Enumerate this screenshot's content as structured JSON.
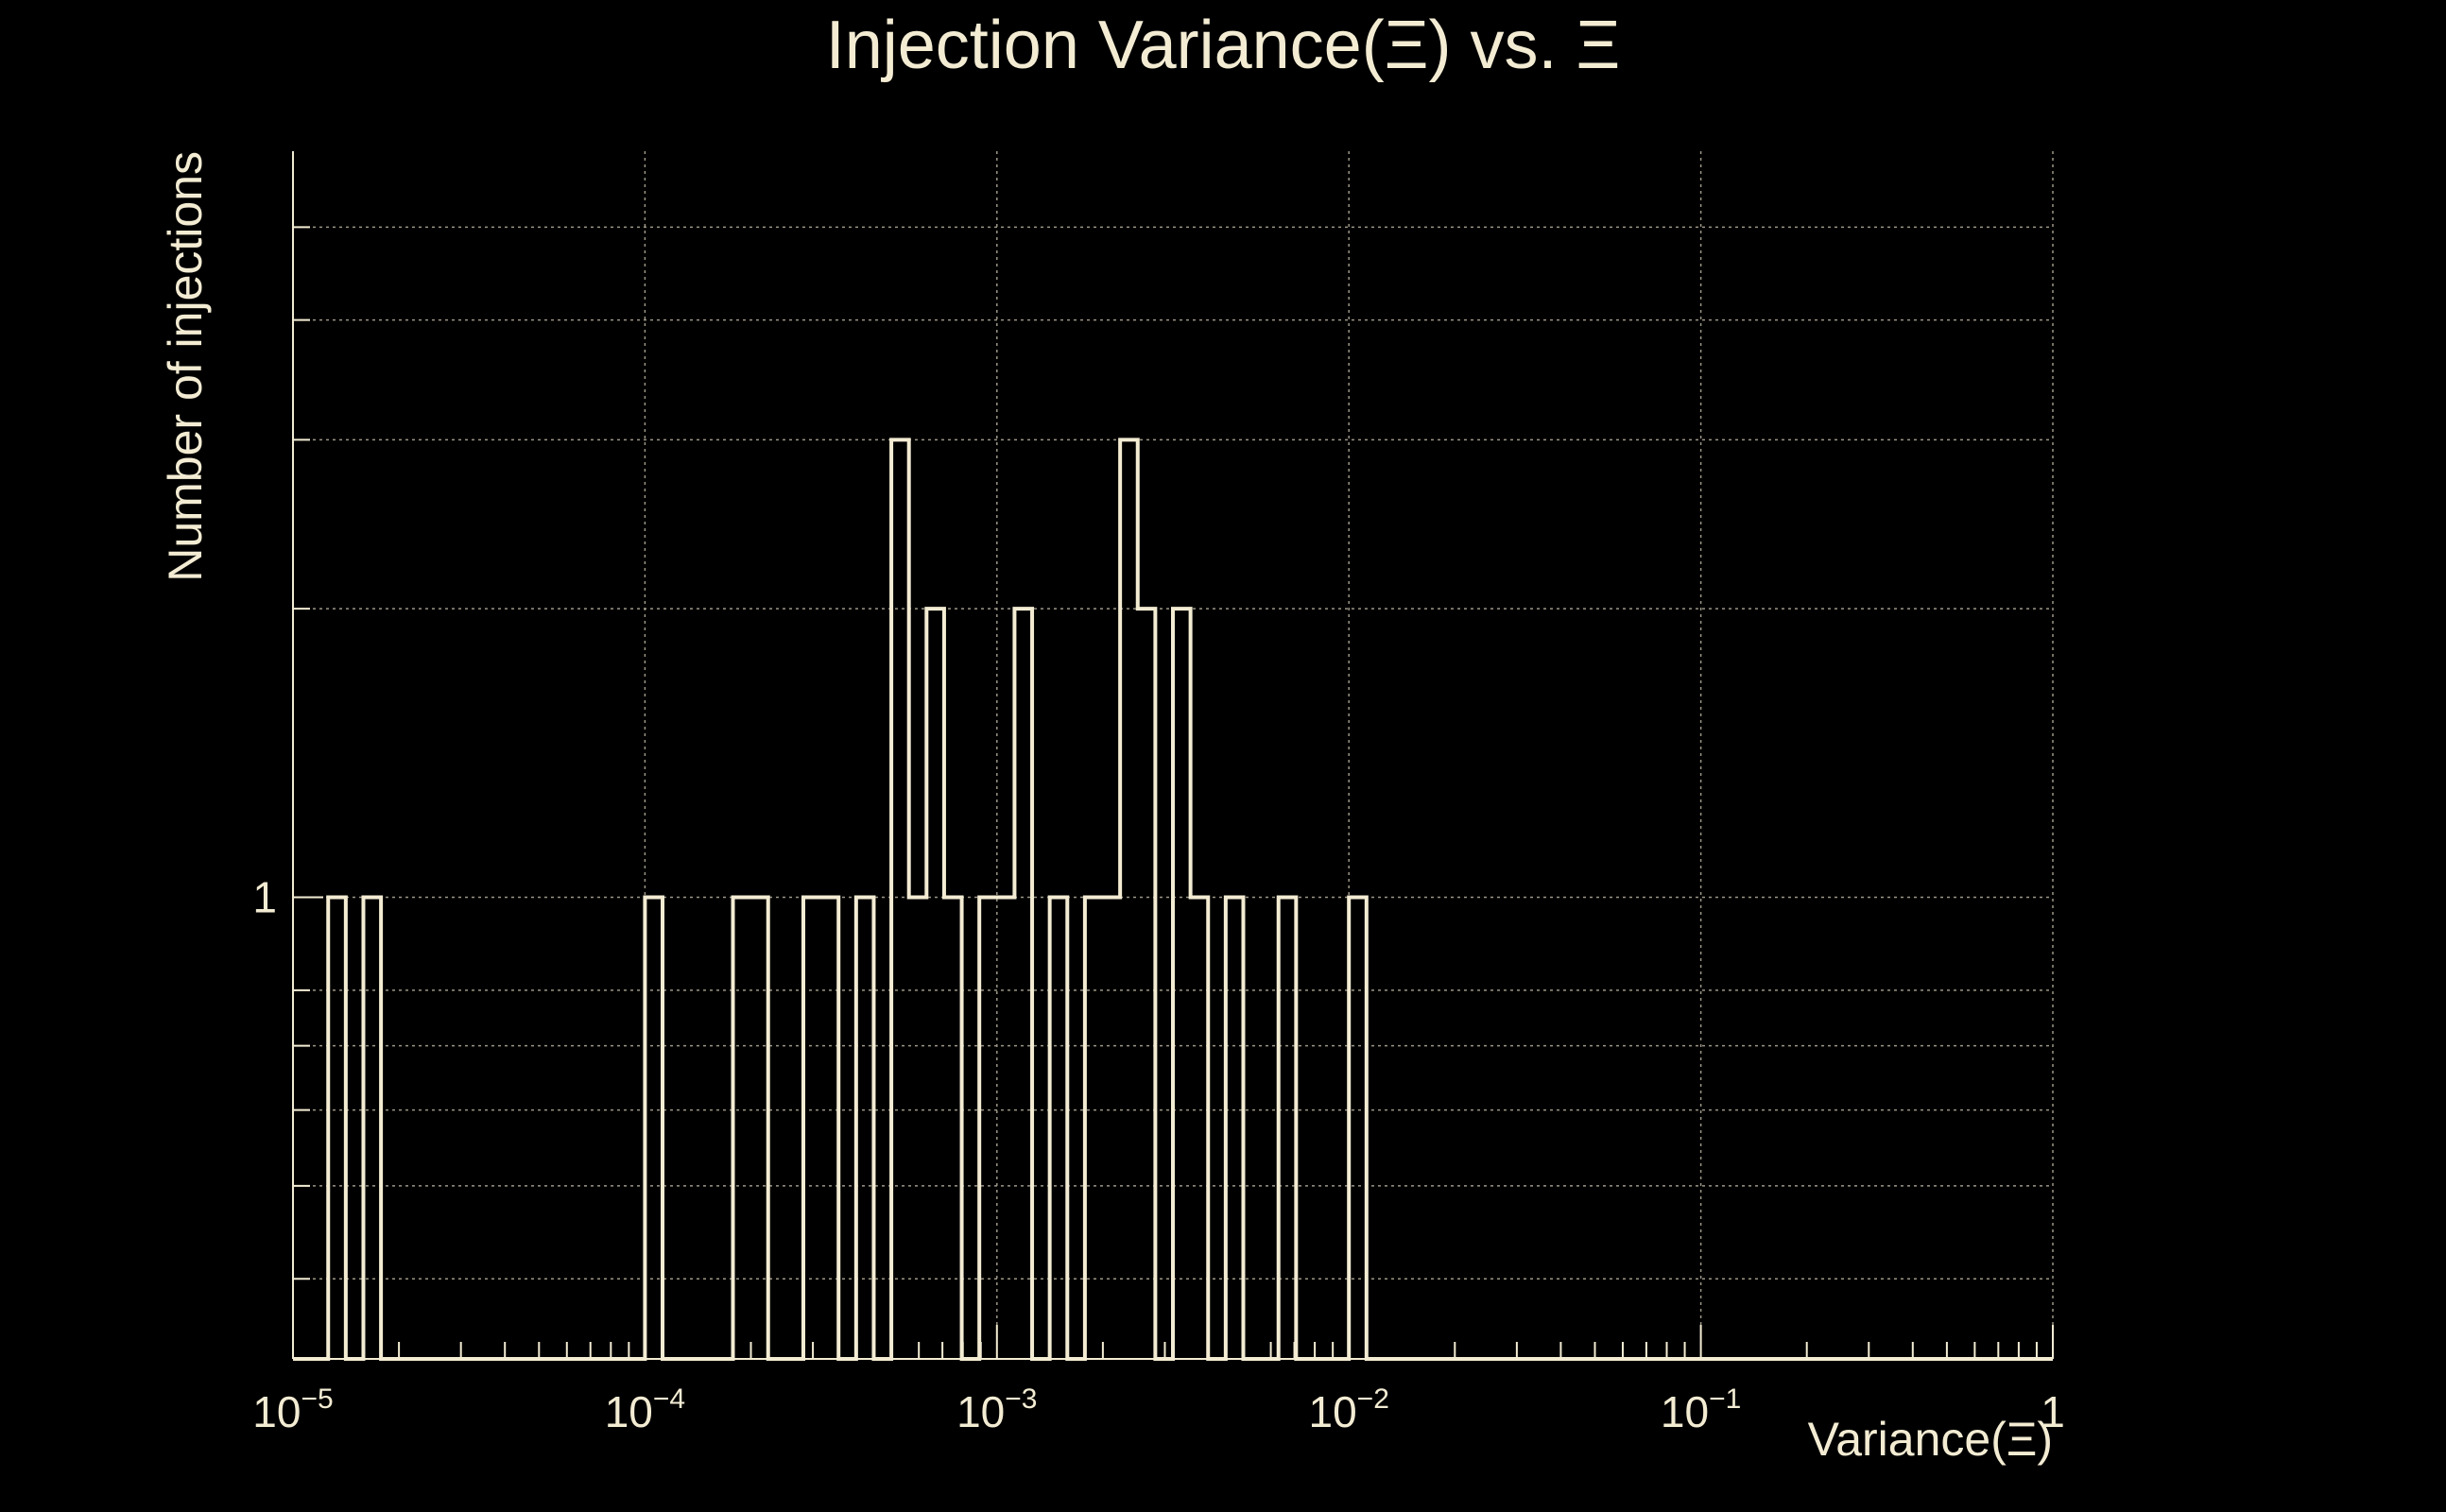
{
  "chart_data": {
    "type": "bar",
    "title": "Injection Variance(Ξ) vs. Ξ",
    "xlabel": "Variance(Ξ)",
    "ylabel": "Number of injections",
    "x_scale": "log",
    "y_scale": "log",
    "xlim": [
      1e-05,
      1
    ],
    "ylim": [
      0.33,
      6
    ],
    "grid": true,
    "x_ticks": [
      {
        "value": 1e-05,
        "base": "10",
        "exp": "−5"
      },
      {
        "value": 0.0001,
        "base": "10",
        "exp": "−4"
      },
      {
        "value": 0.001,
        "base": "10",
        "exp": "−3"
      },
      {
        "value": 0.01,
        "base": "10",
        "exp": "−2"
      },
      {
        "value": 0.1,
        "base": "10",
        "exp": "−1"
      },
      {
        "value": 1,
        "base": "1",
        "exp": ""
      }
    ],
    "y_ticks": [
      {
        "value": 1,
        "label": "1"
      }
    ],
    "bin_edges_log10": [
      -5,
      -4.95,
      -4.9,
      -4.85,
      -4.8,
      -4.75,
      -4.7,
      -4.65,
      -4.6,
      -4.55,
      -4.5,
      -4.45,
      -4.4,
      -4.35,
      -4.3,
      -4.25,
      -4.2,
      -4.15,
      -4.1,
      -4.05,
      -4,
      -3.95,
      -3.9,
      -3.85,
      -3.8,
      -3.75,
      -3.7,
      -3.65,
      -3.6,
      -3.55,
      -3.5,
      -3.45,
      -3.4,
      -3.35,
      -3.3,
      -3.25,
      -3.2,
      -3.15,
      -3.1,
      -3.05,
      -3,
      -2.95,
      -2.9,
      -2.85,
      -2.8,
      -2.75,
      -2.7,
      -2.65,
      -2.6,
      -2.55,
      -2.5,
      -2.45,
      -2.4,
      -2.35,
      -2.3,
      -2.25,
      -2.2,
      -2.15,
      -2.1,
      -2.05,
      -2,
      -1.95,
      -1.9,
      -1.85,
      -1.8,
      -1.75,
      -1.7,
      -1.65,
      -1.6,
      -1.55,
      -1.5,
      -1.45,
      -1.4,
      -1.35,
      -1.3,
      -1.25,
      -1.2,
      -1.15,
      -1.1,
      -1.05,
      -1,
      -0.95,
      -0.9,
      -0.85,
      -0.8,
      -0.75,
      -0.7,
      -0.65,
      -0.6,
      -0.55,
      -0.5,
      -0.45,
      -0.4,
      -0.35,
      -0.3,
      -0.25,
      -0.2,
      -0.15,
      -0.1,
      -0.05,
      0
    ],
    "counts": [
      0,
      0,
      1,
      0,
      1,
      0,
      0,
      0,
      0,
      0,
      0,
      0,
      0,
      0,
      0,
      0,
      0,
      0,
      0,
      0,
      1,
      0,
      0,
      0,
      0,
      1,
      1,
      0,
      0,
      1,
      1,
      0,
      1,
      0,
      3,
      1,
      2,
      1,
      0,
      1,
      1,
      2,
      0,
      1,
      0,
      1,
      1,
      3,
      2,
      0,
      2,
      1,
      0,
      1,
      0,
      0,
      1,
      0,
      0,
      0,
      1,
      0,
      0,
      0,
      0,
      0,
      0,
      0,
      0,
      0,
      0,
      0,
      0,
      0,
      0,
      0,
      0,
      0,
      0,
      0,
      0,
      0,
      0,
      0,
      0,
      0,
      0,
      0,
      0,
      0,
      0,
      0,
      0,
      0,
      0,
      0,
      0,
      0,
      0,
      0
    ]
  }
}
